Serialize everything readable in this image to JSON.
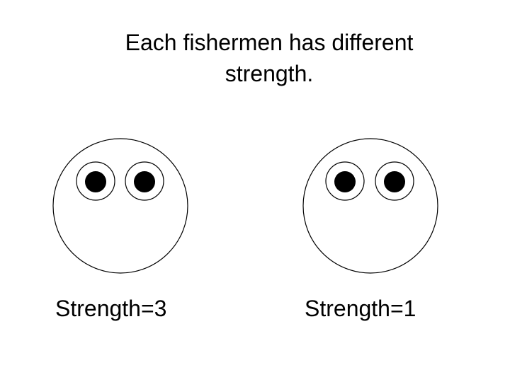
{
  "title": "Each fishermen has different strength.",
  "fishermen": [
    {
      "label": "Strength=3",
      "strength": 3
    },
    {
      "label": "Strength=1",
      "strength": 1
    }
  ],
  "colors": {
    "background": "#ffffff",
    "outline": "#000000",
    "pupil": "#000000",
    "face_fill": "#ffffff"
  },
  "icons": [
    "face-icon",
    "eye-icon",
    "pupil-icon"
  ]
}
